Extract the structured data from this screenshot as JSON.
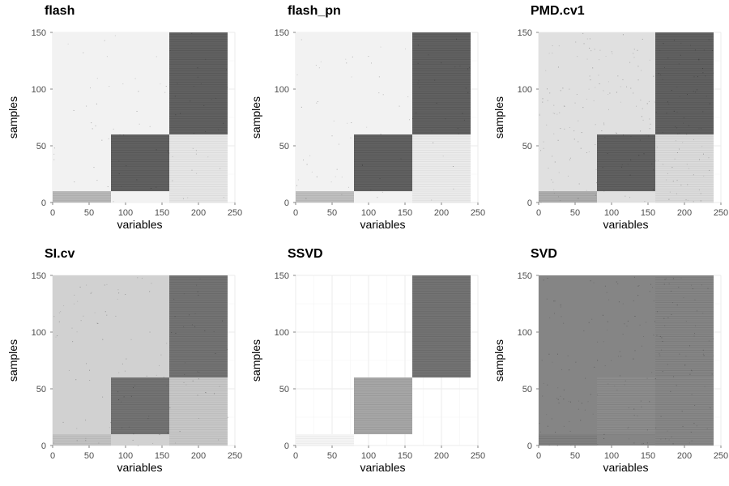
{
  "chart_data": [
    {
      "type": "heatmap",
      "title": "flash",
      "xlabel": "variables",
      "ylabel": "samples",
      "xlim": [
        0,
        250
      ],
      "ylim": [
        0,
        150
      ],
      "xticks": [
        0,
        50,
        100,
        150,
        200,
        250
      ],
      "yticks": [
        0,
        50,
        100,
        150
      ],
      "grid": true,
      "background_shade": 0.05,
      "noise": 0.02,
      "blocks": [
        {
          "x": [
            0,
            80
          ],
          "y": [
            0,
            10
          ],
          "shade": 0.28
        },
        {
          "x": [
            80,
            160
          ],
          "y": [
            10,
            60
          ],
          "shade": 0.62
        },
        {
          "x": [
            160,
            240
          ],
          "y": [
            60,
            150
          ],
          "shade": 0.62
        },
        {
          "x": [
            160,
            240
          ],
          "y": [
            0,
            60
          ],
          "shade": 0.1
        }
      ]
    },
    {
      "type": "heatmap",
      "title": "flash_pn",
      "xlabel": "variables",
      "ylabel": "samples",
      "xlim": [
        0,
        250
      ],
      "ylim": [
        0,
        150
      ],
      "xticks": [
        0,
        50,
        100,
        150,
        200,
        250
      ],
      "yticks": [
        0,
        50,
        100,
        150
      ],
      "grid": true,
      "background_shade": 0.05,
      "noise": 0.02,
      "blocks": [
        {
          "x": [
            0,
            80
          ],
          "y": [
            0,
            10
          ],
          "shade": 0.25
        },
        {
          "x": [
            80,
            160
          ],
          "y": [
            10,
            60
          ],
          "shade": 0.62
        },
        {
          "x": [
            160,
            240
          ],
          "y": [
            60,
            150
          ],
          "shade": 0.62
        },
        {
          "x": [
            160,
            240
          ],
          "y": [
            0,
            60
          ],
          "shade": 0.08
        }
      ]
    },
    {
      "type": "heatmap",
      "title": "PMD.cv1",
      "xlabel": "variables",
      "ylabel": "samples",
      "xlim": [
        0,
        250
      ],
      "ylim": [
        0,
        150
      ],
      "xticks": [
        0,
        50,
        100,
        150,
        200,
        250
      ],
      "yticks": [
        0,
        50,
        100,
        150
      ],
      "grid": true,
      "background_shade": 0.12,
      "noise": 0.06,
      "blocks": [
        {
          "x": [
            0,
            80
          ],
          "y": [
            0,
            10
          ],
          "shade": 0.32
        },
        {
          "x": [
            80,
            160
          ],
          "y": [
            10,
            60
          ],
          "shade": 0.62
        },
        {
          "x": [
            160,
            240
          ],
          "y": [
            60,
            150
          ],
          "shade": 0.62
        },
        {
          "x": [
            160,
            240
          ],
          "y": [
            0,
            60
          ],
          "shade": 0.14
        }
      ]
    },
    {
      "type": "heatmap",
      "title": "SI.cv",
      "xlabel": "variables",
      "ylabel": "samples",
      "xlim": [
        0,
        250
      ],
      "ylim": [
        0,
        150
      ],
      "xticks": [
        0,
        50,
        100,
        150,
        200,
        250
      ],
      "yticks": [
        0,
        50,
        100,
        150
      ],
      "grid": true,
      "background_shade": 0.18,
      "noise": 0.03,
      "blocks": [
        {
          "x": [
            0,
            80
          ],
          "y": [
            0,
            10
          ],
          "shade": 0.24
        },
        {
          "x": [
            80,
            160
          ],
          "y": [
            10,
            60
          ],
          "shade": 0.55
        },
        {
          "x": [
            160,
            240
          ],
          "y": [
            60,
            150
          ],
          "shade": 0.55
        },
        {
          "x": [
            160,
            240
          ],
          "y": [
            0,
            60
          ],
          "shade": 0.22
        }
      ]
    },
    {
      "type": "heatmap",
      "title": "SSVD",
      "xlabel": "variables",
      "ylabel": "samples",
      "xlim": [
        0,
        250
      ],
      "ylim": [
        0,
        150
      ],
      "xticks": [
        0,
        50,
        100,
        150,
        200,
        250
      ],
      "yticks": [
        0,
        50,
        100,
        150
      ],
      "grid": true,
      "background_shade": 0.0,
      "noise": 0.0,
      "blocks": [
        {
          "x": [
            0,
            80
          ],
          "y": [
            0,
            10
          ],
          "shade": 0.04
        },
        {
          "x": [
            80,
            160
          ],
          "y": [
            10,
            60
          ],
          "shade": 0.35
        },
        {
          "x": [
            160,
            240
          ],
          "y": [
            60,
            150
          ],
          "shade": 0.55
        }
      ]
    },
    {
      "type": "heatmap",
      "title": "SVD",
      "xlabel": "variables",
      "ylabel": "samples",
      "xlim": [
        0,
        250
      ],
      "ylim": [
        0,
        150
      ],
      "xticks": [
        0,
        50,
        100,
        150,
        200,
        250
      ],
      "yticks": [
        0,
        50,
        100,
        150
      ],
      "grid": true,
      "background_shade": 0.48,
      "noise": 0.05,
      "blocks": [
        {
          "x": [
            0,
            80
          ],
          "y": [
            0,
            10
          ],
          "shade": 0.5
        },
        {
          "x": [
            80,
            160
          ],
          "y": [
            10,
            60
          ],
          "shade": 0.45
        },
        {
          "x": [
            160,
            240
          ],
          "y": [
            60,
            150
          ],
          "shade": 0.48
        },
        {
          "x": [
            160,
            240
          ],
          "y": [
            0,
            60
          ],
          "shade": 0.47
        }
      ]
    }
  ]
}
